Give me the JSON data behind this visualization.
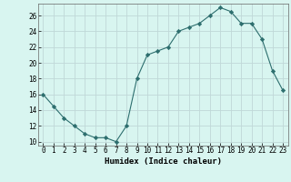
{
  "x": [
    0,
    1,
    2,
    3,
    4,
    5,
    6,
    7,
    8,
    9,
    10,
    11,
    12,
    13,
    14,
    15,
    16,
    17,
    18,
    19,
    20,
    21,
    22,
    23
  ],
  "y": [
    16,
    14.5,
    13,
    12,
    11,
    10.5,
    10.5,
    10,
    12,
    18,
    21,
    21.5,
    22,
    24,
    24.5,
    25,
    26,
    27,
    26.5,
    25,
    25,
    23,
    19,
    16.5
  ],
  "line_color": "#2d6e6e",
  "marker": "D",
  "marker_size": 2.2,
  "bg_color": "#d8f5f0",
  "grid_color": "#c0d8d8",
  "xlabel": "Humidex (Indice chaleur)",
  "xlim": [
    -0.5,
    23.5
  ],
  "ylim": [
    9.5,
    27.5
  ],
  "yticks": [
    10,
    12,
    14,
    16,
    18,
    20,
    22,
    24,
    26
  ],
  "xticks": [
    0,
    1,
    2,
    3,
    4,
    5,
    6,
    7,
    8,
    9,
    10,
    11,
    12,
    13,
    14,
    15,
    16,
    17,
    18,
    19,
    20,
    21,
    22,
    23
  ],
  "tick_fontsize": 5.5,
  "xlabel_fontsize": 6.5
}
